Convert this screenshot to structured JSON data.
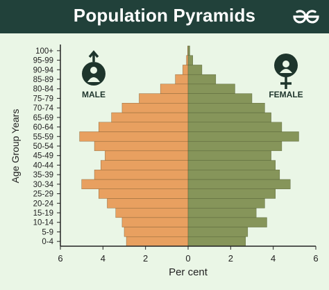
{
  "header": {
    "title": "Population Pyramids",
    "logo_name": "geeksforgeeks-logo"
  },
  "chart_data": {
    "type": "bar",
    "orientation": "horizontal",
    "title": "Population Pyramids",
    "xlabel": "Per cent",
    "ylabel": "Age Group Years",
    "xlim": [
      -6,
      6
    ],
    "x_ticks": [
      -6,
      -4,
      -2,
      0,
      2,
      4,
      6
    ],
    "x_tick_labels": [
      "6",
      "4",
      "2",
      "0",
      "2",
      "4",
      "6"
    ],
    "categories": [
      "0-4",
      "5-9",
      "10-14",
      "15-19",
      "20-24",
      "25-29",
      "30-34",
      "35-39",
      "40-44",
      "45-49",
      "50-54",
      "55-59",
      "60-64",
      "65-69",
      "70-74",
      "75-79",
      "80-84",
      "85-89",
      "90-94",
      "95-99",
      "100+"
    ],
    "series": [
      {
        "name": "MALE",
        "color": "#e8a060",
        "icon": "male-symbol-icon",
        "values": [
          2.9,
          3.0,
          3.1,
          3.4,
          3.8,
          4.2,
          5.0,
          4.4,
          4.1,
          3.9,
          4.4,
          5.1,
          4.2,
          3.6,
          3.1,
          2.3,
          1.3,
          0.6,
          0.25,
          0.08,
          0.02
        ]
      },
      {
        "name": "FEMALE",
        "color": "#86955a",
        "icon": "female-symbol-icon",
        "values": [
          2.7,
          2.8,
          3.7,
          3.2,
          3.6,
          4.1,
          4.8,
          4.3,
          4.1,
          3.9,
          4.4,
          5.2,
          4.4,
          3.9,
          3.6,
          3.0,
          2.2,
          1.3,
          0.65,
          0.22,
          0.08
        ]
      }
    ],
    "grid": false,
    "legend": "icons top-left and top-right"
  },
  "colors": {
    "background": "#eaf6e6",
    "header": "#21413a",
    "male": "#e8a060",
    "female": "#86955a",
    "axis": "#222222",
    "icon": "#1e352c"
  }
}
